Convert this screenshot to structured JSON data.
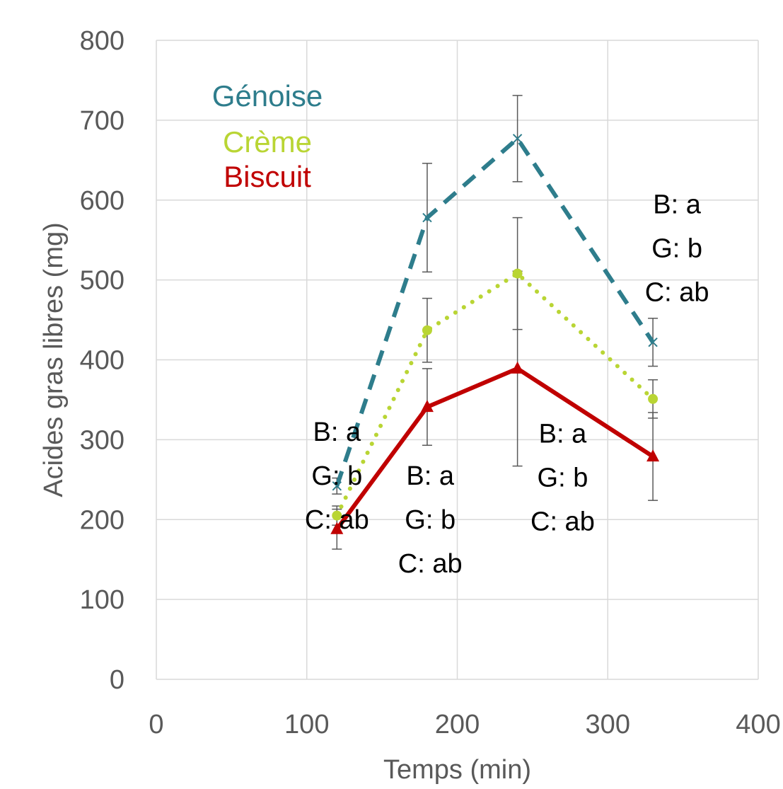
{
  "chart_data": {
    "type": "line",
    "xlabel": "Temps (min)",
    "ylabel": "Acides gras libres (mg)",
    "xlim": [
      0,
      400
    ],
    "ylim": [
      0,
      800
    ],
    "xticks": [
      0,
      100,
      200,
      300,
      400
    ],
    "yticks": [
      0,
      100,
      200,
      300,
      400,
      500,
      600,
      700,
      800
    ],
    "grid": true,
    "legend_placement": "top-left",
    "x": [
      120,
      180,
      240,
      330
    ],
    "series": [
      {
        "name": "Génoise",
        "color": "#2e7d8c",
        "line_style": "dashed",
        "marker": "x",
        "values": [
          242,
          578,
          677,
          422
        ],
        "errors": [
          10,
          68,
          54,
          30
        ]
      },
      {
        "name": "Crème",
        "color": "#b9d534",
        "line_style": "dotted",
        "marker": "circle",
        "values": [
          205,
          437,
          508,
          351
        ],
        "errors": [
          12,
          40,
          70,
          24
        ]
      },
      {
        "name": "Biscuit",
        "color": "#c00000",
        "line_style": "solid",
        "marker": "triangle",
        "values": [
          188,
          341,
          389,
          279
        ],
        "errors": [
          25,
          48,
          122,
          55
        ]
      }
    ],
    "annotations": [
      {
        "lines": [
          "B: a",
          "G: b",
          "C: ab"
        ],
        "x": 120,
        "y": 310
      },
      {
        "lines": [
          "B: a",
          "G: b",
          "C: ab"
        ],
        "x": 182,
        "y": 255
      },
      {
        "lines": [
          "B: a",
          "G: b",
          "C: ab"
        ],
        "x": 270,
        "y": 308
      },
      {
        "lines": [
          "B: a",
          "G: b",
          "C: ab"
        ],
        "x": 346,
        "y": 595
      }
    ]
  }
}
